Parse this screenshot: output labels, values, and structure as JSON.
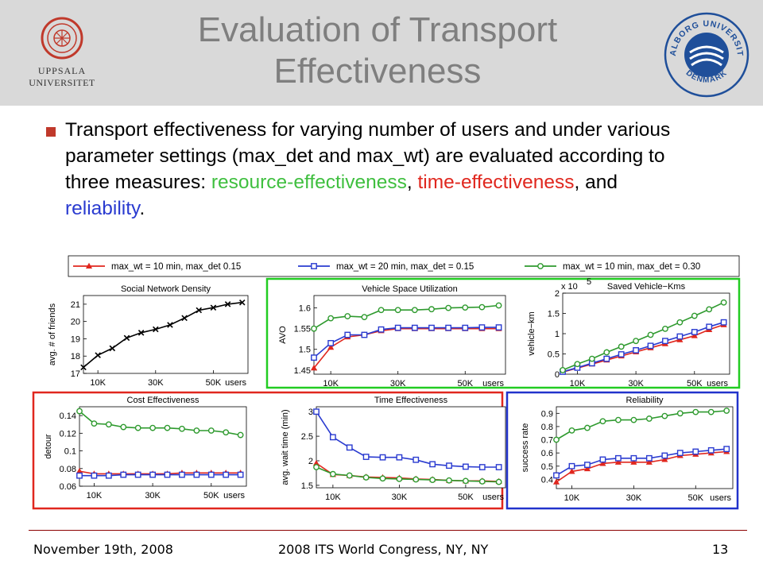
{
  "slide": {
    "title_line1": "Evaluation of Transport",
    "title_line2": "Effectiveness",
    "logo_left_text1": "UPPSALA",
    "logo_left_text2": "UNIVERSITET",
    "logo_right_text_top": "AALBORG UNIVERSITY",
    "logo_right_text_bottom": "DENMARK",
    "bullet": {
      "part1": "Transport effectiveness for varying number of users and under various parameter settings (max_det and max_wt) are evaluated according to three measures: ",
      "resource": "resource-effectiveness",
      "sep1": ", ",
      "time": "time-effectiveness",
      "sep2": ", and ",
      "reliability": "reliability",
      "end": "."
    },
    "footer": {
      "date": "November 19th, 2008",
      "event": "2008 ITS World Congress, NY, NY",
      "page": "13"
    }
  },
  "legend": [
    {
      "label": "max_wt = 10 min, max_det 0.15",
      "color": "#e0271e",
      "marker": "triangle"
    },
    {
      "label": "max_wt = 20 min, max_det = 0.15",
      "color": "#2a3bd0",
      "marker": "square"
    },
    {
      "label": "max_wt = 10 min, max_det = 0.30",
      "color": "#2e9a2e",
      "marker": "circle"
    }
  ],
  "box_colors": {
    "green": "#22cc22",
    "red": "#e0271e",
    "blue": "#2233cc"
  },
  "chart_data": [
    {
      "type": "line",
      "title": "Social Network Density",
      "xlabel": "",
      "x_end_label": "users",
      "ylabel": "avg. # of friends",
      "ylim": [
        17,
        21.5
      ],
      "yticks": [
        17,
        18,
        19,
        20,
        21
      ],
      "ytick_labels": [
        "17",
        "18",
        "19",
        "20",
        "21"
      ],
      "xlim": [
        5000,
        62000
      ],
      "xticks": [
        10000,
        30000,
        50000
      ],
      "xtick_labels": [
        "10K",
        "30K",
        "50K"
      ],
      "x": [
        5000,
        10000,
        15000,
        20000,
        25000,
        30000,
        35000,
        40000,
        45000,
        50000,
        55000,
        60000
      ],
      "series": [
        {
          "marker": "x",
          "color": "#000000",
          "values": [
            17.35,
            18.05,
            18.45,
            19.05,
            19.35,
            19.55,
            19.8,
            20.2,
            20.65,
            20.8,
            21.0,
            21.1
          ]
        }
      ]
    },
    {
      "type": "line",
      "title": "Vehicle Space Utilization",
      "xlabel": "",
      "x_end_label": "users",
      "ylabel": "AVO",
      "ylim": [
        1.44,
        1.63
      ],
      "yticks": [
        1.45,
        1.5,
        1.55,
        1.6
      ],
      "ytick_labels": [
        "1.45",
        "1.5",
        "1.55",
        "1.6"
      ],
      "xlim": [
        5000,
        62000
      ],
      "xticks": [
        10000,
        30000,
        50000
      ],
      "xtick_labels": [
        "10K",
        "30K",
        "50K"
      ],
      "x": [
        5000,
        10000,
        15000,
        20000,
        25000,
        30000,
        35000,
        40000,
        45000,
        50000,
        55000,
        60000
      ],
      "series": [
        {
          "marker": "triangle",
          "color": "#e0271e",
          "values": [
            1.455,
            1.505,
            1.53,
            1.535,
            1.545,
            1.55,
            1.55,
            1.55,
            1.55,
            1.55,
            1.55,
            1.55
          ]
        },
        {
          "marker": "square",
          "color": "#2a3bd0",
          "values": [
            1.48,
            1.515,
            1.535,
            1.535,
            1.548,
            1.552,
            1.552,
            1.552,
            1.552,
            1.552,
            1.553,
            1.553
          ]
        },
        {
          "marker": "circle",
          "color": "#2e9a2e",
          "values": [
            1.55,
            1.575,
            1.58,
            1.578,
            1.595,
            1.595,
            1.595,
            1.597,
            1.6,
            1.601,
            1.602,
            1.606
          ]
        }
      ]
    },
    {
      "type": "line",
      "title": "Saved Vehicle−Kms",
      "xlabel": "",
      "x_end_label": "users",
      "y_multiplier": "x 10",
      "y_multiplier_exp": "5",
      "ylabel": "vehicle−km",
      "ylim": [
        0,
        2
      ],
      "yticks": [
        0,
        0.5,
        1,
        1.5,
        2
      ],
      "ytick_labels": [
        "0",
        "0.5",
        "1",
        "1.5",
        "2"
      ],
      "xlim": [
        5000,
        62000
      ],
      "xticks": [
        10000,
        30000,
        50000
      ],
      "xtick_labels": [
        "10K",
        "30K",
        "50K"
      ],
      "x": [
        5000,
        10000,
        15000,
        20000,
        25000,
        30000,
        35000,
        40000,
        45000,
        50000,
        55000,
        60000
      ],
      "series": [
        {
          "marker": "triangle",
          "color": "#e0271e",
          "values": [
            0.05,
            0.15,
            0.25,
            0.35,
            0.45,
            0.55,
            0.65,
            0.75,
            0.85,
            0.95,
            1.1,
            1.22
          ]
        },
        {
          "marker": "square",
          "color": "#2a3bd0",
          "values": [
            0.06,
            0.16,
            0.27,
            0.38,
            0.49,
            0.59,
            0.7,
            0.82,
            0.93,
            1.04,
            1.17,
            1.28
          ]
        },
        {
          "marker": "circle",
          "color": "#2e9a2e",
          "values": [
            0.1,
            0.25,
            0.38,
            0.54,
            0.68,
            0.82,
            0.97,
            1.12,
            1.28,
            1.44,
            1.6,
            1.77
          ]
        }
      ]
    },
    {
      "type": "line",
      "title": "Cost Effectiveness",
      "xlabel": "",
      "x_end_label": "users",
      "ylabel": "detour",
      "ylim": [
        0.06,
        0.15
      ],
      "yticks": [
        0.06,
        0.08,
        0.1,
        0.12,
        0.14
      ],
      "ytick_labels": [
        "0.06",
        "0.08",
        "0.1",
        "0.12",
        "0.14"
      ],
      "xlim": [
        5000,
        62000
      ],
      "xticks": [
        10000,
        30000,
        50000
      ],
      "xtick_labels": [
        "10K",
        "30K",
        "50K"
      ],
      "x": [
        5000,
        10000,
        15000,
        20000,
        25000,
        30000,
        35000,
        40000,
        45000,
        50000,
        55000,
        60000
      ],
      "series": [
        {
          "marker": "triangle",
          "color": "#e0271e",
          "values": [
            0.077,
            0.074,
            0.074,
            0.074,
            0.074,
            0.074,
            0.074,
            0.075,
            0.075,
            0.075,
            0.075,
            0.075
          ]
        },
        {
          "marker": "square",
          "color": "#2a3bd0",
          "values": [
            0.072,
            0.072,
            0.072,
            0.073,
            0.073,
            0.073,
            0.073,
            0.073,
            0.073,
            0.073,
            0.073,
            0.073
          ]
        },
        {
          "marker": "circle",
          "color": "#2e9a2e",
          "values": [
            0.145,
            0.131,
            0.13,
            0.127,
            0.126,
            0.126,
            0.126,
            0.125,
            0.123,
            0.123,
            0.121,
            0.118
          ]
        }
      ]
    },
    {
      "type": "line",
      "title": "Time Effectiveness",
      "xlabel": "",
      "x_end_label": "users",
      "ylabel": "avg. wait time (min)",
      "ylim": [
        1.45,
        3.1
      ],
      "yticks": [
        1.5,
        2,
        2.5,
        3
      ],
      "ytick_labels": [
        "1.5",
        "2",
        "2.5",
        "3"
      ],
      "xlim": [
        5000,
        62000
      ],
      "xticks": [
        10000,
        30000,
        50000
      ],
      "xtick_labels": [
        "10K",
        "30K",
        "50K"
      ],
      "x": [
        5000,
        10000,
        15000,
        20000,
        25000,
        30000,
        35000,
        40000,
        45000,
        50000,
        55000,
        60000
      ],
      "series": [
        {
          "marker": "triangle",
          "color": "#e0271e",
          "values": [
            1.95,
            1.72,
            1.7,
            1.67,
            1.66,
            1.65,
            1.63,
            1.62,
            1.6,
            1.59,
            1.59,
            1.58
          ]
        },
        {
          "marker": "square",
          "color": "#2a3bd0",
          "values": [
            3.0,
            2.48,
            2.27,
            2.08,
            2.07,
            2.07,
            2.02,
            1.93,
            1.9,
            1.88,
            1.87,
            1.87
          ]
        },
        {
          "marker": "circle",
          "color": "#2e9a2e",
          "values": [
            1.87,
            1.73,
            1.7,
            1.66,
            1.64,
            1.63,
            1.62,
            1.61,
            1.6,
            1.59,
            1.58,
            1.57
          ]
        }
      ]
    },
    {
      "type": "line",
      "title": "Reliability",
      "xlabel": "",
      "x_end_label": "users",
      "ylabel": "success rate",
      "ylim": [
        0.33,
        0.95
      ],
      "yticks": [
        0.4,
        0.5,
        0.6,
        0.7,
        0.8,
        0.9
      ],
      "ytick_labels": [
        "0.4",
        "0.5",
        "0.6",
        "0.7",
        "0.8",
        "0.9"
      ],
      "xlim": [
        5000,
        62000
      ],
      "xticks": [
        10000,
        30000,
        50000
      ],
      "xtick_labels": [
        "10K",
        "30K",
        "50K"
      ],
      "x": [
        5000,
        10000,
        15000,
        20000,
        25000,
        30000,
        35000,
        40000,
        45000,
        50000,
        55000,
        60000
      ],
      "series": [
        {
          "marker": "triangle",
          "color": "#e0271e",
          "values": [
            0.38,
            0.46,
            0.48,
            0.52,
            0.53,
            0.53,
            0.53,
            0.55,
            0.58,
            0.59,
            0.6,
            0.61
          ]
        },
        {
          "marker": "square",
          "color": "#2a3bd0",
          "values": [
            0.43,
            0.5,
            0.51,
            0.55,
            0.56,
            0.56,
            0.56,
            0.58,
            0.6,
            0.61,
            0.62,
            0.63
          ]
        },
        {
          "marker": "circle",
          "color": "#2e9a2e",
          "values": [
            0.7,
            0.77,
            0.79,
            0.84,
            0.85,
            0.85,
            0.86,
            0.88,
            0.9,
            0.91,
            0.91,
            0.92
          ]
        }
      ]
    }
  ]
}
